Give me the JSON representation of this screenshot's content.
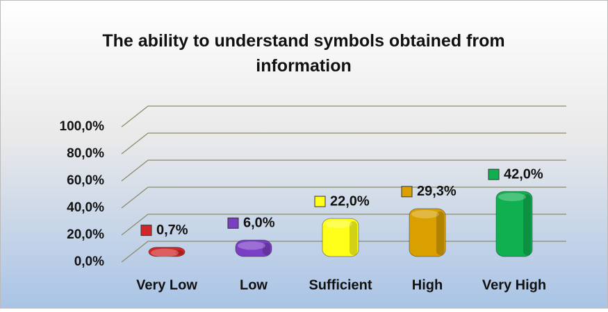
{
  "chart_data": {
    "type": "bar3d",
    "title": "The ability to understand symbols obtained from information",
    "categories": [
      "Very Low",
      "Low",
      "Sufficient",
      "High",
      "Very High"
    ],
    "values": [
      0.7,
      6.0,
      22.0,
      29.3,
      42.0
    ],
    "value_labels": [
      "0,7%",
      "6,0%",
      "22,0%",
      "29,3%",
      "42,0%"
    ],
    "colors": [
      "#d02828",
      "#7a3fc4",
      "#ffff1a",
      "#d9a000",
      "#10b050"
    ],
    "ylim": [
      0,
      100
    ],
    "yticks": [
      {
        "value": 0,
        "label": "0,0%"
      },
      {
        "value": 20,
        "label": "20,0%"
      },
      {
        "value": 40,
        "label": "40,0%"
      },
      {
        "value": 60,
        "label": "60,0%"
      },
      {
        "value": 80,
        "label": "80,0%"
      },
      {
        "value": 100,
        "label": "100,0%"
      }
    ],
    "grid": true
  }
}
